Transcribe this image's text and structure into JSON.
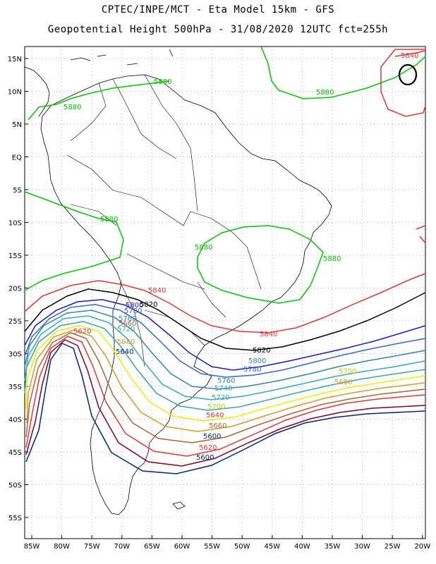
{
  "header": {
    "title": "CPTEC/INPE/MCT -  Eta Model 15km - GFS",
    "subtitle": "Geopotential Height 500hPa - 31/08/2020 12UTC fct=255h"
  },
  "axes": {
    "lat_labels": [
      "15N",
      "10N",
      "5N",
      "EQ",
      "5S",
      "10S",
      "15S",
      "20S",
      "25S",
      "30S",
      "35S",
      "40S",
      "45S",
      "50S",
      "55S"
    ],
    "lon_labels": [
      "85W",
      "80W",
      "75W",
      "70W",
      "65W",
      "60W",
      "55W",
      "50W",
      "45W",
      "40W",
      "35W",
      "30W",
      "25W",
      "20W"
    ]
  },
  "contours": {
    "levels": [
      {
        "value": "5880",
        "color": "#00cc00"
      },
      {
        "value": "5840",
        "color": "#ee3333"
      },
      {
        "value": "5820",
        "color": "#000000"
      },
      {
        "value": "5800",
        "color": "#1a1acc"
      },
      {
        "value": "5780",
        "color": "#3366dd"
      },
      {
        "value": "5760",
        "color": "#3388aa"
      },
      {
        "value": "5740",
        "color": "#33aacc"
      },
      {
        "value": "5720",
        "color": "#33aaaa"
      },
      {
        "value": "5700",
        "color": "#eeee00"
      },
      {
        "value": "5680",
        "color": "#dd9922"
      },
      {
        "value": "5660",
        "color": "#aa6633"
      },
      {
        "value": "5640",
        "color": "#ee3333"
      },
      {
        "value": "5620",
        "color": "#880022"
      },
      {
        "value": "5600",
        "color": "#002288"
      }
    ],
    "labels": [
      {
        "text": "5880",
        "color": "#00cc00"
      },
      {
        "text": "5880",
        "color": "#00cc00"
      },
      {
        "text": "5880",
        "color": "#00cc00"
      },
      {
        "text": "5880",
        "color": "#00cc00"
      },
      {
        "text": "5880",
        "color": "#00cc00"
      },
      {
        "text": "5880",
        "color": "#00cc00"
      },
      {
        "text": "5840",
        "color": "#ee3333"
      },
      {
        "text": "5840",
        "color": "#ee3333"
      },
      {
        "text": "5840",
        "color": "#ee3333"
      },
      {
        "text": "5820",
        "color": "#000000"
      },
      {
        "text": "5820",
        "color": "#000000"
      },
      {
        "text": "5800",
        "color": "#1a1acc"
      },
      {
        "text": "5800",
        "color": "#3388aa"
      },
      {
        "text": "5780",
        "color": "#3366dd"
      },
      {
        "text": "5780",
        "color": "#3366dd"
      },
      {
        "text": "5760",
        "color": "#3388aa"
      },
      {
        "text": "5760",
        "color": "#3388aa"
      },
      {
        "text": "5740",
        "color": "#33aacc"
      },
      {
        "text": "5720",
        "color": "#33aaaa"
      },
      {
        "text": "5720",
        "color": "#33aaaa"
      },
      {
        "text": "5700",
        "color": "#cccc00"
      },
      {
        "text": "5700",
        "color": "#cccc00"
      },
      {
        "text": "5680",
        "color": "#dd9922"
      },
      {
        "text": "5680",
        "color": "#dd9922"
      },
      {
        "text": "5660",
        "color": "#aa6633"
      },
      {
        "text": "5660",
        "color": "#aa6633"
      },
      {
        "text": "5640",
        "color": "#ee3333"
      },
      {
        "text": "5640",
        "color": "#002288"
      },
      {
        "text": "5620",
        "color": "#ee3333"
      },
      {
        "text": "5620",
        "color": "#ee3333"
      },
      {
        "text": "5600",
        "color": "#002288"
      },
      {
        "text": "5600",
        "color": "#002288"
      }
    ]
  }
}
